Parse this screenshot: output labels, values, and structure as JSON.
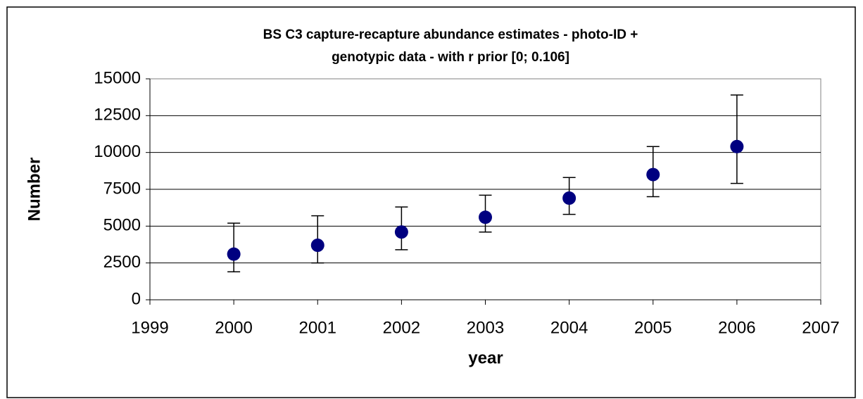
{
  "chart_data": {
    "type": "scatter",
    "title": "BS C3 capture-recapture abundance estimates - photo-ID + genotypic data - with r prior [0; 0.106]",
    "x_label": "year",
    "y_label": "Number",
    "x": [
      2000,
      2001,
      2002,
      2003,
      2004,
      2005,
      2006
    ],
    "values": [
      3100,
      3700,
      4600,
      5600,
      6900,
      8500,
      10400
    ],
    "lower": [
      1900,
      2500,
      3400,
      4600,
      5800,
      7000,
      7900
    ],
    "upper": [
      5200,
      5700,
      6300,
      7100,
      8300,
      10400,
      13900
    ],
    "color": "#000080",
    "xlim": [
      1999,
      2007
    ],
    "xticks": [
      1999,
      2000,
      2001,
      2002,
      2003,
      2004,
      2005,
      2006,
      2007
    ],
    "ylim": [
      0,
      15000
    ],
    "yticks": [
      0,
      2500,
      5000,
      7500,
      10000,
      12500,
      15000
    ],
    "grid": true
  }
}
